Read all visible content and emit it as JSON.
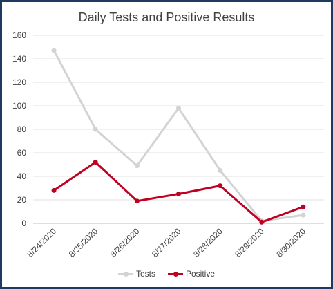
{
  "chart_data": {
    "type": "line",
    "title": "Daily Tests and Positive Results",
    "xlabel": "",
    "ylabel": "",
    "categories": [
      "8/24/2020",
      "8/25/2020",
      "8/26/2020",
      "8/27/2020",
      "8/28/2020",
      "8/29/2020",
      "8/30/2020"
    ],
    "ylim": [
      0,
      160
    ],
    "yticks": [
      0,
      20,
      40,
      60,
      80,
      100,
      120,
      140,
      160
    ],
    "grid": true,
    "legend": "bottom",
    "series": [
      {
        "name": "Tests",
        "color": "#d3d3d3",
        "values": [
          147,
          80,
          49,
          98,
          45,
          2,
          7
        ]
      },
      {
        "name": "Positive",
        "color": "#c00020",
        "values": [
          28,
          52,
          19,
          25,
          32,
          1,
          14
        ]
      }
    ]
  }
}
